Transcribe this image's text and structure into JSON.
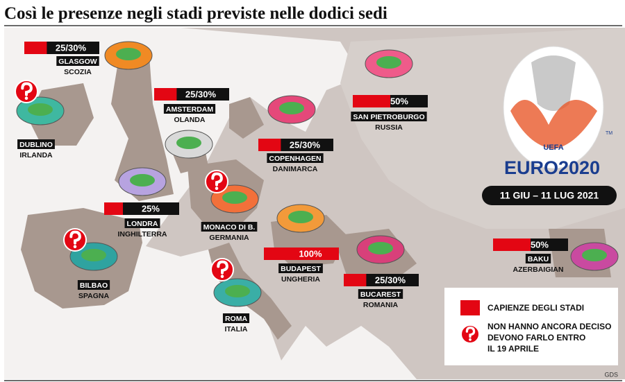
{
  "header": {
    "title": "Così le presenze negli stadi previste nelle dodici sedi"
  },
  "venues": [
    {
      "city": "GLASGOW",
      "country": "SCOZIA",
      "capacity": [
        25,
        30
      ],
      "capacity_label": "25/30%",
      "undecided": false
    },
    {
      "city": "DUBLINO",
      "country": "IRLANDA",
      "undecided": true
    },
    {
      "city": "AMSTERDAM",
      "country": "OLANDA",
      "capacity": [
        25,
        30
      ],
      "capacity_label": "25/30%",
      "undecided": false
    },
    {
      "city": "COPENHAGEN",
      "country": "DANIMARCA",
      "capacity": [
        25,
        30
      ],
      "capacity_label": "25/30%",
      "undecided": false
    },
    {
      "city": "SAN PIETROBURGO",
      "country": "RUSSIA",
      "capacity": [
        50
      ],
      "capacity_label": "50%",
      "undecided": false
    },
    {
      "city": "LONDRA",
      "country": "INGHILTERRA",
      "capacity": [
        25
      ],
      "capacity_label": "25%",
      "undecided": false
    },
    {
      "city": "MONACO DI B.",
      "country": "GERMANIA",
      "undecided": true
    },
    {
      "city": "BILBAO",
      "country": "SPAGNA",
      "undecided": true
    },
    {
      "city": "BUDAPEST",
      "country": "UNGHERIA",
      "capacity": [
        100
      ],
      "capacity_label": "100%",
      "undecided": false
    },
    {
      "city": "BUCAREST",
      "country": "ROMANIA",
      "capacity": [
        25,
        30
      ],
      "capacity_label": "25/30%",
      "undecided": false
    },
    {
      "city": "ROMA",
      "country": "ITALIA",
      "undecided": true
    },
    {
      "city": "BAKU",
      "country": "AZERBAIGIAN",
      "capacity": [
        50
      ],
      "capacity_label": "50%",
      "undecided": false
    }
  ],
  "logo": {
    "uefa": "UEFA",
    "brand": "EURO2020",
    "tm": "TM",
    "dates": "11 GIU – 11 LUG 2021"
  },
  "legend": {
    "capacity": "CAPIENZE DEGLI STADI",
    "undecided": [
      "NON HANNO ANCORA DECISO",
      "DEVONO FARLO ENTRO",
      "IL 19 APRILE"
    ]
  },
  "source": "GDS"
}
